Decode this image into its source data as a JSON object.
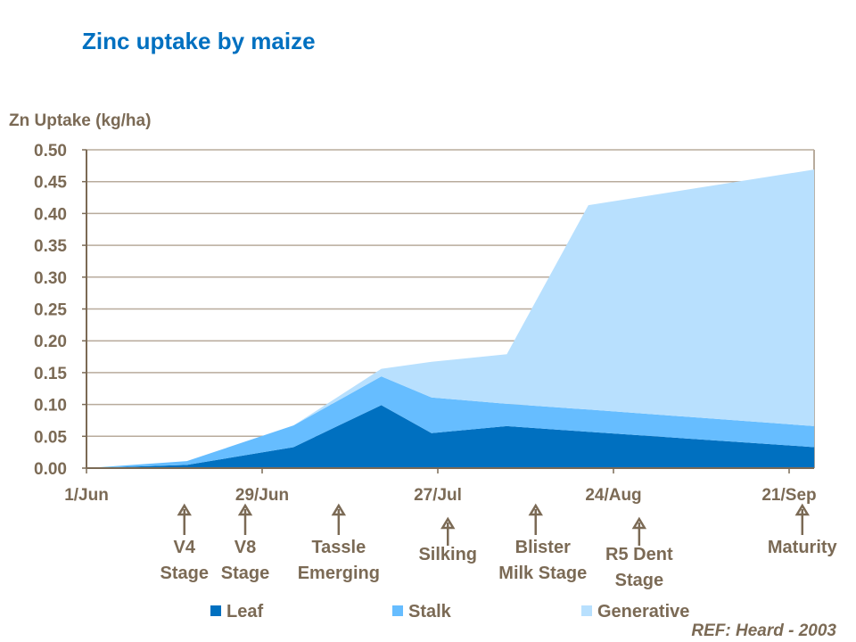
{
  "chart_data": {
    "type": "area",
    "stacked": true,
    "title": "Zinc uptake by maize",
    "ylabel": "Zn Uptake (kg/ha)",
    "xlabel": "",
    "ylim": [
      0,
      0.5
    ],
    "yticks": [
      "0.00",
      "0.05",
      "0.10",
      "0.15",
      "0.20",
      "0.25",
      "0.30",
      "0.35",
      "0.40",
      "0.45",
      "0.50"
    ],
    "xlim": [
      "1/Jun",
      "25/Sep"
    ],
    "xticks": [
      {
        "label": "1/Jun",
        "day": 0
      },
      {
        "label": "29/Jun",
        "day": 28
      },
      {
        "label": "27/Jul",
        "day": 56
      },
      {
        "label": "24/Aug",
        "day": 84
      },
      {
        "label": "21/Sep",
        "day": 112
      }
    ],
    "grid": "horizontal",
    "legend_position": "bottom",
    "x_days_since_1_Jun": [
      0,
      16,
      33,
      47,
      55,
      67,
      80,
      116
    ],
    "series": [
      {
        "name": "Leaf",
        "color": "#0070c0",
        "values": [
          0,
          0.005,
          0.033,
          0.099,
          0.055,
          0.066,
          0.057,
          0.033
        ]
      },
      {
        "name": "Stalk",
        "color": "#66bdff",
        "values": [
          0,
          0.006,
          0.034,
          0.045,
          0.056,
          0.035,
          0.035,
          0.033
        ]
      },
      {
        "name": "Generative",
        "color": "#b8e0fe",
        "values": [
          0,
          0,
          0,
          0.012,
          0.056,
          0.078,
          0.321,
          0.403
        ]
      }
    ],
    "annotations": [
      {
        "lines": [
          "V4",
          "Stage"
        ],
        "day": 15.6
      },
      {
        "lines": [
          "V8",
          "Stage"
        ],
        "day": 25.3
      },
      {
        "lines": [
          "Tassle",
          "Emerging"
        ],
        "day": 40.2
      },
      {
        "lines": [
          "Silking"
        ],
        "day": 57.6
      },
      {
        "lines": [
          "Blister",
          "Milk Stage"
        ],
        "day": 71.6
      },
      {
        "lines": [
          "R5 Dent",
          "Stage"
        ],
        "day": 88.1
      },
      {
        "lines": [
          "Maturity"
        ],
        "day": 114.1
      }
    ],
    "reference": "REF: Heard - 2003"
  },
  "colors": {
    "title": "#0070c0",
    "text": "#7b6a55",
    "grid": "#b8ab9c",
    "axis": "#7b6a55"
  }
}
